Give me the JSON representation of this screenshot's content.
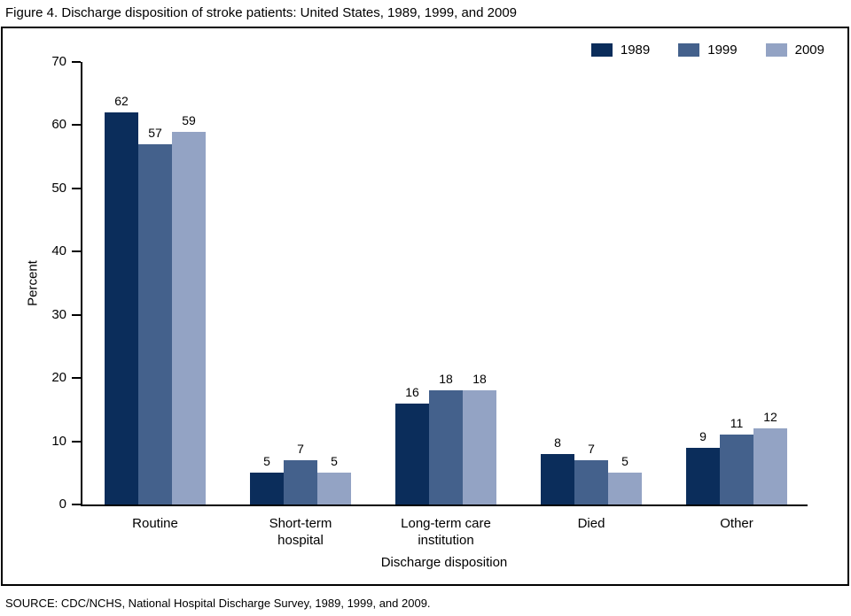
{
  "title": "Figure 4. Discharge disposition of stroke patients: United States, 1989, 1999, and 2009",
  "source": "SOURCE: CDC/NCHS, National Hospital Discharge Survey, 1989, 1999, and 2009.",
  "chart_data": {
    "type": "bar",
    "title": "Figure 4. Discharge disposition of stroke patients: United States, 1989, 1999, and 2009",
    "xlabel": "Discharge disposition",
    "ylabel": "Percent",
    "ylim": [
      0,
      70
    ],
    "yticks": [
      0,
      10,
      20,
      30,
      40,
      50,
      60,
      70
    ],
    "grid": false,
    "legend_position": "top-right",
    "categories": [
      "Routine",
      "Short-term\nhospital",
      "Long-term care\ninstitution",
      "Died",
      "Other"
    ],
    "series": [
      {
        "name": "1989",
        "color": "#0b2d5b",
        "values": [
          62,
          5,
          16,
          8,
          9
        ]
      },
      {
        "name": "1999",
        "color": "#44618c",
        "values": [
          57,
          7,
          18,
          7,
          11
        ]
      },
      {
        "name": "2009",
        "color": "#93a3c4",
        "values": [
          59,
          5,
          18,
          5,
          12
        ]
      }
    ]
  }
}
